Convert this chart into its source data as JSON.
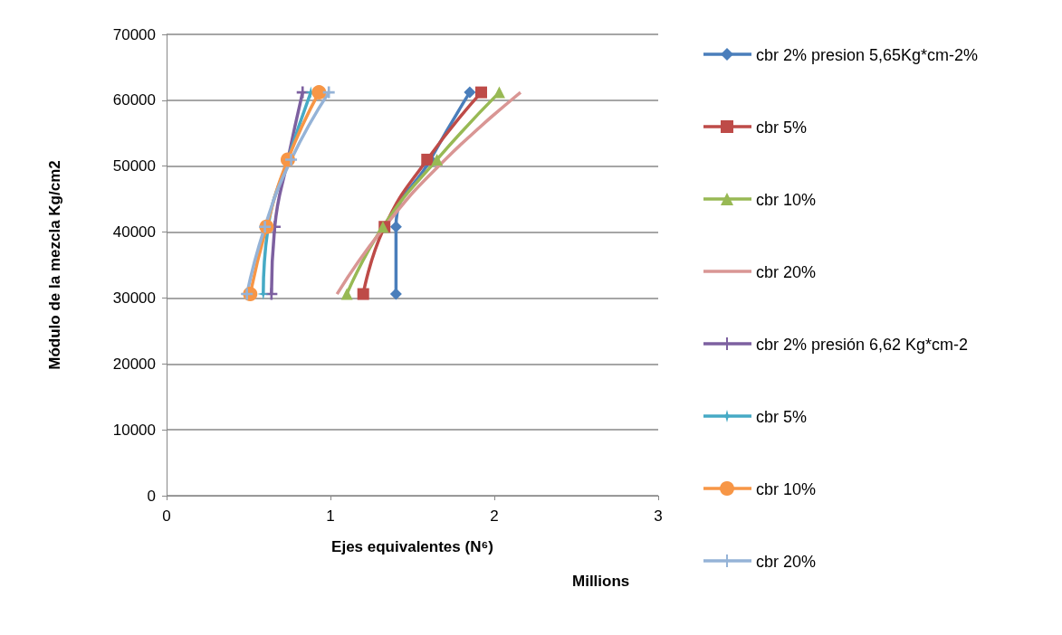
{
  "chart_data": {
    "type": "line",
    "xlabel": "Ejes equivalentes (N⁶)",
    "ylabel": "Módulo de la mezcla Kg/cm2",
    "annotations": [
      "Millions"
    ],
    "xlim": [
      0,
      3
    ],
    "xticks": [
      0,
      1,
      2,
      3
    ],
    "ylim": [
      0,
      70000
    ],
    "yticks": [
      0,
      10000,
      20000,
      30000,
      40000,
      50000,
      60000,
      70000
    ],
    "grid": "y",
    "legend": "right",
    "line_style": "solid",
    "series": [
      {
        "name": "cbr 2% presion 5,65Kg*cm-2%",
        "color": "#4a7ebb",
        "marker": "diamond",
        "x": [
          1.4,
          1.4,
          1.61,
          1.85
        ],
        "values": [
          30600,
          40800,
          51000,
          61200
        ]
      },
      {
        "name": "cbr 5%",
        "color": "#be4b48",
        "marker": "square",
        "x": [
          1.2,
          1.33,
          1.59,
          1.92
        ],
        "values": [
          30600,
          40800,
          51000,
          61200
        ]
      },
      {
        "name": "cbr 10%",
        "color": "#98b954",
        "marker": "triangle",
        "x": [
          1.1,
          1.32,
          1.65,
          2.03
        ],
        "values": [
          30600,
          40800,
          51000,
          61200
        ]
      },
      {
        "name": "cbr 20%",
        "color": "#d99694",
        "marker": "none",
        "x": [
          1.04,
          1.33,
          1.7,
          2.16
        ],
        "values": [
          30600,
          40800,
          51000,
          61200
        ]
      },
      {
        "name": "cbr 2% presión 6,62 Kg*cm-2",
        "color": "#7d60a0",
        "marker": "cross",
        "x": [
          0.64,
          0.66,
          0.74,
          0.83
        ],
        "values": [
          30600,
          40800,
          51000,
          61200
        ]
      },
      {
        "name": "cbr 5%",
        "color": "#46aac5",
        "marker": "star",
        "x": [
          0.59,
          0.62,
          0.74,
          0.88
        ],
        "values": [
          30600,
          40800,
          51000,
          61200
        ]
      },
      {
        "name": "cbr 10%",
        "color": "#f79646",
        "marker": "circle",
        "x": [
          0.51,
          0.61,
          0.74,
          0.93
        ],
        "values": [
          30600,
          40800,
          51000,
          61200
        ]
      },
      {
        "name": "cbr 20%",
        "color": "#95b3d7",
        "marker": "cross",
        "x": [
          0.49,
          0.6,
          0.76,
          0.99
        ],
        "values": [
          30600,
          40800,
          51000,
          61200
        ]
      }
    ]
  }
}
